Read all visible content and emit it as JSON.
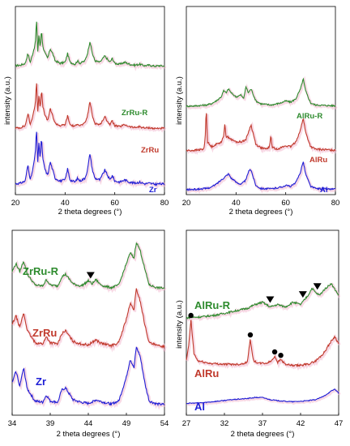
{
  "colors": {
    "green": "#2e8b2e",
    "red": "#c0392b",
    "blue": "#1f1fd6",
    "shadow": "#f2b9d0"
  },
  "chart_data": [
    {
      "id": "p1",
      "type": "line",
      "xlabel": "2 theta degrees (°)",
      "ylabel": "intensity (a.u.)",
      "xlim": [
        20,
        80
      ],
      "xticks": [
        "20",
        "40",
        "60",
        "80"
      ],
      "series": [
        {
          "name": "ZrRu-R",
          "color": "green",
          "x": [
            20,
            22,
            24,
            25,
            26,
            27,
            28,
            28.5,
            29,
            29.5,
            30,
            30.5,
            31,
            32,
            33,
            34,
            35,
            36,
            38,
            40,
            41,
            42,
            44,
            45,
            46,
            48,
            49,
            50,
            51,
            52,
            54,
            56,
            58,
            59,
            60,
            62,
            64,
            66,
            68,
            70,
            72,
            74,
            76,
            78,
            80
          ],
          "y": [
            0.05,
            0.06,
            0.1,
            0.3,
            0.12,
            0.3,
            0.5,
            1.0,
            0.35,
            0.7,
            0.4,
            0.8,
            0.45,
            0.3,
            0.2,
            0.4,
            0.3,
            0.15,
            0.1,
            0.12,
            0.3,
            0.12,
            0.08,
            0.15,
            0.1,
            0.15,
            0.3,
            0.55,
            0.3,
            0.15,
            0.12,
            0.25,
            0.12,
            0.2,
            0.1,
            0.08,
            0.12,
            0.08,
            0.06,
            0.08,
            0.05,
            0.06,
            0.04,
            0.05,
            0.04
          ]
        },
        {
          "name": "ZrRu",
          "color": "red",
          "x": [
            20,
            22,
            24,
            25,
            26,
            27,
            28,
            28.5,
            29,
            29.5,
            30,
            30.5,
            31,
            32,
            33,
            34,
            35,
            36,
            38,
            40,
            41,
            42,
            44,
            45,
            46,
            48,
            49,
            50,
            51,
            52,
            54,
            56,
            58,
            59,
            60,
            62,
            64,
            66,
            68,
            70,
            72,
            74,
            76,
            78,
            80
          ],
          "y": [
            0.05,
            0.06,
            0.1,
            0.35,
            0.12,
            0.3,
            0.55,
            1.0,
            0.4,
            0.75,
            0.45,
            0.85,
            0.5,
            0.3,
            0.2,
            0.45,
            0.3,
            0.15,
            0.1,
            0.12,
            0.3,
            0.12,
            0.08,
            0.15,
            0.1,
            0.15,
            0.3,
            0.6,
            0.3,
            0.15,
            0.12,
            0.28,
            0.12,
            0.2,
            0.1,
            0.08,
            0.12,
            0.08,
            0.06,
            0.08,
            0.05,
            0.06,
            0.04,
            0.05,
            0.04
          ]
        },
        {
          "name": "Zr",
          "color": "blue",
          "x": [
            20,
            22,
            24,
            25,
            26,
            27,
            28,
            28.5,
            29,
            29.5,
            30,
            30.5,
            31,
            32,
            33,
            34,
            35,
            36,
            38,
            40,
            41,
            42,
            44,
            45,
            46,
            48,
            49,
            50,
            51,
            52,
            54,
            56,
            58,
            59,
            60,
            62,
            64,
            66,
            68,
            70,
            72,
            74,
            76,
            78,
            80
          ],
          "y": [
            0.05,
            0.06,
            0.1,
            0.4,
            0.12,
            0.3,
            0.6,
            1.05,
            0.45,
            0.8,
            0.5,
            0.9,
            0.5,
            0.3,
            0.2,
            0.45,
            0.3,
            0.15,
            0.1,
            0.12,
            0.32,
            0.12,
            0.08,
            0.15,
            0.1,
            0.15,
            0.3,
            0.6,
            0.3,
            0.15,
            0.12,
            0.3,
            0.12,
            0.2,
            0.1,
            0.08,
            0.12,
            0.08,
            0.06,
            0.08,
            0.05,
            0.06,
            0.04,
            0.05,
            0.04
          ]
        }
      ]
    },
    {
      "id": "p2",
      "type": "line",
      "xlabel": "2 theta degrees (°)",
      "ylabel": "intensity (a.u.)",
      "xlim": [
        20,
        80
      ],
      "xticks": [
        "20",
        "40",
        "60",
        "80"
      ],
      "series": [
        {
          "name": "AlRu-R",
          "color": "green",
          "x": [
            20,
            24,
            28,
            30,
            32,
            34,
            35,
            36,
            37,
            38,
            40,
            42,
            43,
            44,
            45,
            46,
            48,
            50,
            54,
            58,
            60,
            62,
            64,
            66,
            67,
            68,
            70,
            72,
            76,
            80
          ],
          "y": [
            0.02,
            0.03,
            0.05,
            0.08,
            0.15,
            0.25,
            0.4,
            0.35,
            0.45,
            0.35,
            0.25,
            0.3,
            0.2,
            0.5,
            0.35,
            0.45,
            0.15,
            0.08,
            0.05,
            0.1,
            0.15,
            0.12,
            0.2,
            0.45,
            0.7,
            0.4,
            0.1,
            0.05,
            0.04,
            0.03
          ]
        },
        {
          "name": "AlRu",
          "color": "red",
          "x": [
            20,
            24,
            27,
            27.5,
            28,
            28.5,
            30,
            32,
            34,
            35,
            35.5,
            36,
            37,
            38,
            40,
            42,
            44,
            45,
            46,
            47,
            48,
            50,
            52,
            53.5,
            54,
            54.5,
            56,
            58,
            60,
            62,
            64,
            66,
            67,
            68,
            70,
            72,
            76,
            80
          ],
          "y": [
            0.02,
            0.03,
            0.05,
            0.2,
            0.9,
            0.2,
            0.1,
            0.15,
            0.2,
            0.3,
            0.6,
            0.3,
            0.3,
            0.25,
            0.2,
            0.2,
            0.25,
            0.4,
            0.55,
            0.35,
            0.15,
            0.08,
            0.05,
            0.1,
            0.35,
            0.1,
            0.05,
            0.08,
            0.12,
            0.1,
            0.2,
            0.45,
            0.7,
            0.4,
            0.1,
            0.05,
            0.04,
            0.03
          ]
        },
        {
          "name": "Al",
          "color": "blue",
          "x": [
            20,
            24,
            28,
            30,
            32,
            34,
            36,
            37,
            38,
            40,
            42,
            44,
            45,
            46,
            47,
            48,
            50,
            54,
            58,
            60,
            62,
            64,
            66,
            67,
            68,
            70,
            72,
            76,
            80
          ],
          "y": [
            0.02,
            0.03,
            0.05,
            0.08,
            0.15,
            0.25,
            0.35,
            0.4,
            0.3,
            0.2,
            0.15,
            0.25,
            0.45,
            0.5,
            0.3,
            0.12,
            0.05,
            0.04,
            0.08,
            0.12,
            0.1,
            0.18,
            0.45,
            0.7,
            0.4,
            0.1,
            0.05,
            0.04,
            0.03
          ]
        }
      ]
    },
    {
      "id": "p3",
      "type": "line",
      "xlabel": "2 theta degrees (°)",
      "ylabel": "",
      "xlim": [
        34,
        54
      ],
      "xticks": [
        "34",
        "39",
        "44",
        "49",
        "54"
      ],
      "series": [
        {
          "name": "ZrRu-R",
          "color": "green",
          "x": [
            34,
            34.5,
            35,
            35.5,
            36,
            37,
            38,
            38.5,
            39,
            40,
            40.5,
            41,
            42,
            43,
            43.5,
            44,
            44.5,
            45,
            45.5,
            46,
            47,
            48,
            49,
            49.5,
            50,
            50.3,
            50.8,
            51.5,
            52,
            53,
            54
          ],
          "y": [
            0.35,
            0.5,
            0.35,
            0.55,
            0.3,
            0.1,
            0.08,
            0.2,
            0.1,
            0.08,
            0.25,
            0.3,
            0.12,
            0.08,
            0.12,
            0.18,
            0.12,
            0.2,
            0.12,
            0.08,
            0.05,
            0.1,
            0.5,
            0.7,
            0.6,
            0.9,
            0.75,
            0.35,
            0.1,
            0.05,
            0.04
          ]
        },
        {
          "name": "ZrRu",
          "color": "red",
          "x": [
            34,
            34.5,
            35,
            35.5,
            36,
            37,
            38,
            38.5,
            39,
            40,
            40.5,
            41,
            42,
            43,
            44,
            45,
            45.5,
            46,
            47,
            48,
            49,
            49.5,
            50,
            50.3,
            50.8,
            51.5,
            52,
            53,
            54
          ],
          "y": [
            0.4,
            0.55,
            0.35,
            0.6,
            0.3,
            0.1,
            0.08,
            0.2,
            0.1,
            0.08,
            0.25,
            0.3,
            0.12,
            0.08,
            0.06,
            0.15,
            0.1,
            0.08,
            0.05,
            0.1,
            0.5,
            0.75,
            0.65,
            1.0,
            0.8,
            0.35,
            0.1,
            0.05,
            0.04
          ]
        },
        {
          "name": "Zr",
          "color": "blue",
          "x": [
            34,
            34.5,
            35,
            35.5,
            36,
            37,
            38,
            38.5,
            39,
            40,
            40.5,
            41,
            42,
            43,
            44,
            45,
            45.5,
            46,
            47,
            48,
            49,
            49.5,
            50,
            50.3,
            50.8,
            51.5,
            52,
            53,
            54
          ],
          "y": [
            0.4,
            0.6,
            0.35,
            0.65,
            0.3,
            0.1,
            0.08,
            0.2,
            0.1,
            0.08,
            0.28,
            0.32,
            0.12,
            0.08,
            0.06,
            0.12,
            0.1,
            0.08,
            0.05,
            0.1,
            0.5,
            0.8,
            0.65,
            1.0,
            0.85,
            0.35,
            0.1,
            0.05,
            0.04
          ]
        }
      ],
      "markers": [
        {
          "series": "ZrRu-R",
          "shape": "triangle",
          "x": 44.3
        }
      ]
    },
    {
      "id": "p4",
      "type": "line",
      "xlabel": "2 theta degrees (°)",
      "ylabel": "intensity (a.u.)",
      "xlim": [
        27,
        47
      ],
      "xticks": [
        "27",
        "32",
        "37",
        "42",
        "47"
      ],
      "series": [
        {
          "name": "AlRu-R",
          "color": "green",
          "x": [
            27,
            29,
            31,
            33,
            35,
            36,
            37,
            38,
            39,
            40,
            41,
            42,
            43,
            43.5,
            44,
            44.5,
            45,
            46,
            47
          ],
          "y": [
            0.02,
            0.04,
            0.08,
            0.15,
            0.22,
            0.3,
            0.35,
            0.25,
            0.3,
            0.25,
            0.35,
            0.3,
            0.5,
            0.65,
            0.55,
            0.5,
            0.6,
            0.75,
            0.5
          ]
        },
        {
          "name": "AlRu",
          "color": "red",
          "x": [
            27,
            27.3,
            27.6,
            28,
            28.5,
            30,
            32,
            34,
            35,
            35.4,
            35.8,
            36.5,
            37.5,
            38.2,
            38.6,
            39,
            39.4,
            40,
            41,
            42,
            43,
            44,
            45,
            46,
            46.5,
            47
          ],
          "y": [
            0.15,
            0.45,
            1.0,
            0.3,
            0.15,
            0.1,
            0.08,
            0.08,
            0.12,
            0.6,
            0.15,
            0.1,
            0.1,
            0.15,
            0.25,
            0.12,
            0.18,
            0.08,
            0.05,
            0.06,
            0.08,
            0.15,
            0.3,
            0.55,
            0.65,
            0.5
          ]
        },
        {
          "name": "Al",
          "color": "blue",
          "x": [
            27,
            29,
            31,
            33,
            35,
            36,
            37,
            38,
            39,
            40,
            41,
            42,
            43,
            44,
            45,
            46,
            46.5,
            47
          ],
          "y": [
            0.02,
            0.05,
            0.12,
            0.2,
            0.25,
            0.3,
            0.3,
            0.2,
            0.15,
            0.12,
            0.1,
            0.12,
            0.15,
            0.2,
            0.35,
            0.6,
            0.7,
            0.5
          ]
        }
      ],
      "markers": [
        {
          "series": "AlRu-R",
          "shape": "triangle",
          "x": 38.0
        },
        {
          "series": "AlRu-R",
          "shape": "triangle",
          "x": 42.3
        },
        {
          "series": "AlRu-R",
          "shape": "triangle",
          "x": 44.2
        },
        {
          "series": "AlRu",
          "shape": "dot",
          "x": 27.6
        },
        {
          "series": "AlRu",
          "shape": "dot",
          "x": 35.4
        },
        {
          "series": "AlRu",
          "shape": "dot",
          "x": 38.6
        },
        {
          "series": "AlRu",
          "shape": "dot",
          "x": 39.4
        }
      ]
    }
  ]
}
